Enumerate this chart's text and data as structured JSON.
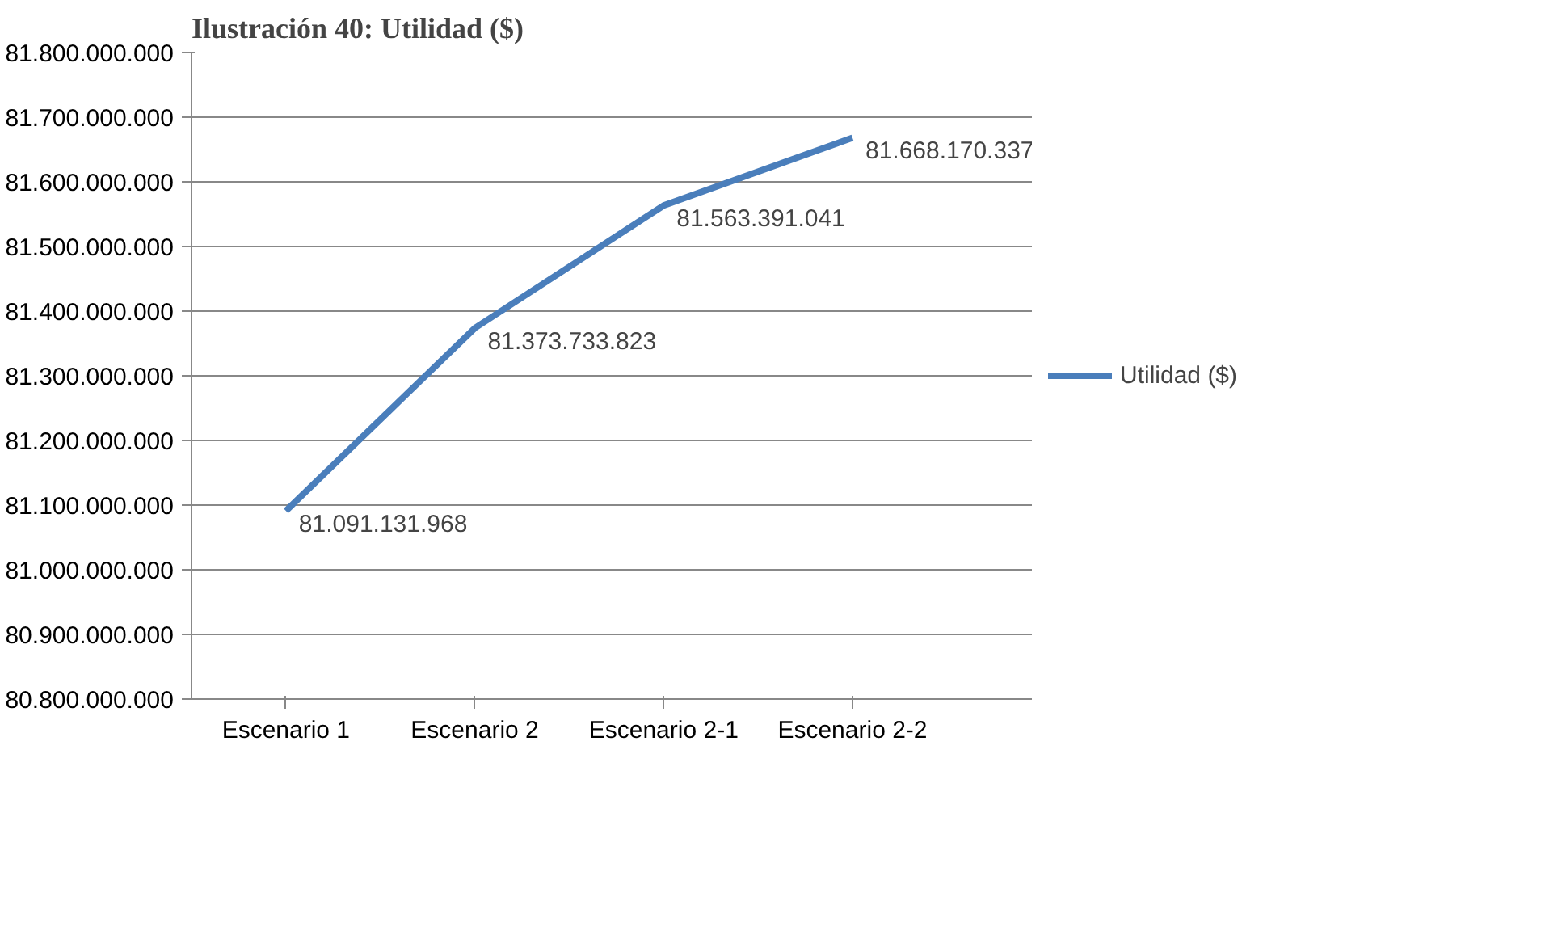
{
  "chart_data": {
    "type": "line",
    "title": "Ilustración 40: Utilidad ($)",
    "categories": [
      "Escenario 1",
      "Escenario 2",
      "Escenario 2-1",
      "Escenario 2-2"
    ],
    "series": [
      {
        "name": "Utilidad ($)",
        "color": "#4a7ebb",
        "values": [
          81091131968,
          81373733823,
          81563391041,
          81668170337
        ]
      }
    ],
    "ylim": [
      80800000000,
      81800000000
    ],
    "yticks": [
      {
        "value": 80800000000,
        "label": "80.800.000.000"
      },
      {
        "value": 80900000000,
        "label": "80.900.000.000"
      },
      {
        "value": 81000000000,
        "label": "81.000.000.000"
      },
      {
        "value": 81100000000,
        "label": "81.100.000.000"
      },
      {
        "value": 81200000000,
        "label": "81.200.000.000"
      },
      {
        "value": 81300000000,
        "label": "81.300.000.000"
      },
      {
        "value": 81400000000,
        "label": "81.400.000.000"
      },
      {
        "value": 81500000000,
        "label": "81.500.000.000"
      },
      {
        "value": 81600000000,
        "label": "81.600.000.000"
      },
      {
        "value": 81700000000,
        "label": "81.700.000.000"
      },
      {
        "value": 81800000000,
        "label": "81.800.000.000"
      }
    ],
    "value_labels": [
      "81.091.131.968",
      "81.373.733.823",
      "81.563.391.041",
      "81.668.170.337"
    ],
    "grid": "y",
    "legend": "right",
    "marker": "none",
    "line_style": "solid"
  }
}
